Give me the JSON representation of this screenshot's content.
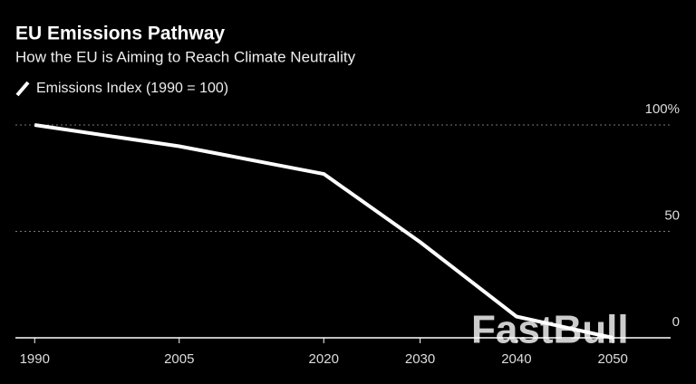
{
  "chart_data": {
    "type": "line",
    "title": "EU Emissions Pathway",
    "subtitle": "How the EU is Aiming to Reach Climate Neutrality",
    "watermark": "FastBull",
    "x": [
      1990,
      2005,
      2020,
      2030,
      2040,
      2050
    ],
    "series": [
      {
        "name": "Emissions Index (1990 = 100)",
        "color": "#ffffff",
        "values": [
          100,
          90,
          77,
          45,
          10,
          0
        ]
      }
    ],
    "xlim": [
      1988,
      2056
    ],
    "xticks": [
      1990,
      2005,
      2020,
      2030,
      2040,
      2050
    ],
    "ylim": [
      0,
      100
    ],
    "yticks": [
      0,
      50,
      {
        "value": 100,
        "label": "100%"
      }
    ],
    "grid": true
  }
}
